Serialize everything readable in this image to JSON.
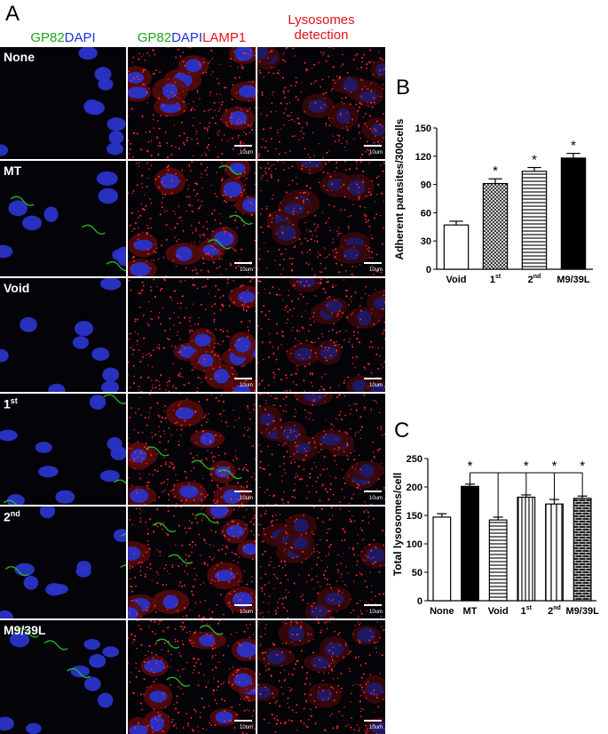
{
  "figure": {
    "panel_labels": {
      "a": "A",
      "b": "B",
      "c": "C"
    },
    "column_headers": {
      "col1": [
        {
          "text": "GP82",
          "color": "#1aa31a"
        },
        {
          "text": "DAPI",
          "color": "#1f2fd9"
        }
      ],
      "col2": [
        {
          "text": "GP82",
          "color": "#1aa31a"
        },
        {
          "text": "DAPI",
          "color": "#1f2fd9"
        },
        {
          "text": "LAMP1",
          "color": "#e01414"
        }
      ],
      "col3_line1": "Lysosomes",
      "col3_line2": "detection",
      "col3_color": "#e01414"
    },
    "rows": [
      {
        "label": "None",
        "sup": ""
      },
      {
        "label": "MT",
        "sup": ""
      },
      {
        "label": "Void",
        "sup": ""
      },
      {
        "label": "1",
        "sup": "st"
      },
      {
        "label": "2",
        "sup": "nd"
      },
      {
        "label": "M9/39L",
        "sup": ""
      }
    ],
    "scale_bar_label": "10um"
  },
  "chart_data": [
    {
      "panel": "B",
      "type": "bar",
      "categories": [
        "Void",
        "1st",
        "2nd",
        "M9/39L"
      ],
      "values": [
        47,
        91,
        104,
        118
      ],
      "errors": [
        4,
        5,
        4,
        5
      ],
      "significance": [
        "",
        "*",
        "*",
        "*"
      ],
      "patterns": [
        "white",
        "crosshatch",
        "horizontal",
        "black"
      ],
      "title": "",
      "xlabel": "",
      "ylabel": "Adherent parasites/300cells",
      "ylim": [
        0,
        150
      ],
      "yticks": [
        0,
        30,
        60,
        90,
        120,
        150
      ],
      "grid": false
    },
    {
      "panel": "C",
      "type": "bar",
      "categories": [
        "None",
        "MT",
        "Void",
        "1st",
        "2nd",
        "M9/39L"
      ],
      "values": [
        147,
        201,
        142,
        182,
        170,
        180
      ],
      "errors": [
        6,
        4,
        5,
        4,
        8,
        4
      ],
      "significance_bracket": {
        "from": "MT",
        "to": [
          "Void",
          "1st",
          "2nd",
          "M9/39L"
        ],
        "marks": [
          "*",
          "*",
          "*",
          "*"
        ]
      },
      "patterns": [
        "white",
        "black",
        "horizontal",
        "vertical",
        "vertical-wide",
        "brick"
      ],
      "title": "",
      "xlabel": "",
      "ylabel": "Total lysosomes/cell",
      "ylim": [
        0,
        250
      ],
      "yticks": [
        0,
        50,
        100,
        150,
        200,
        250
      ],
      "grid": false
    }
  ]
}
